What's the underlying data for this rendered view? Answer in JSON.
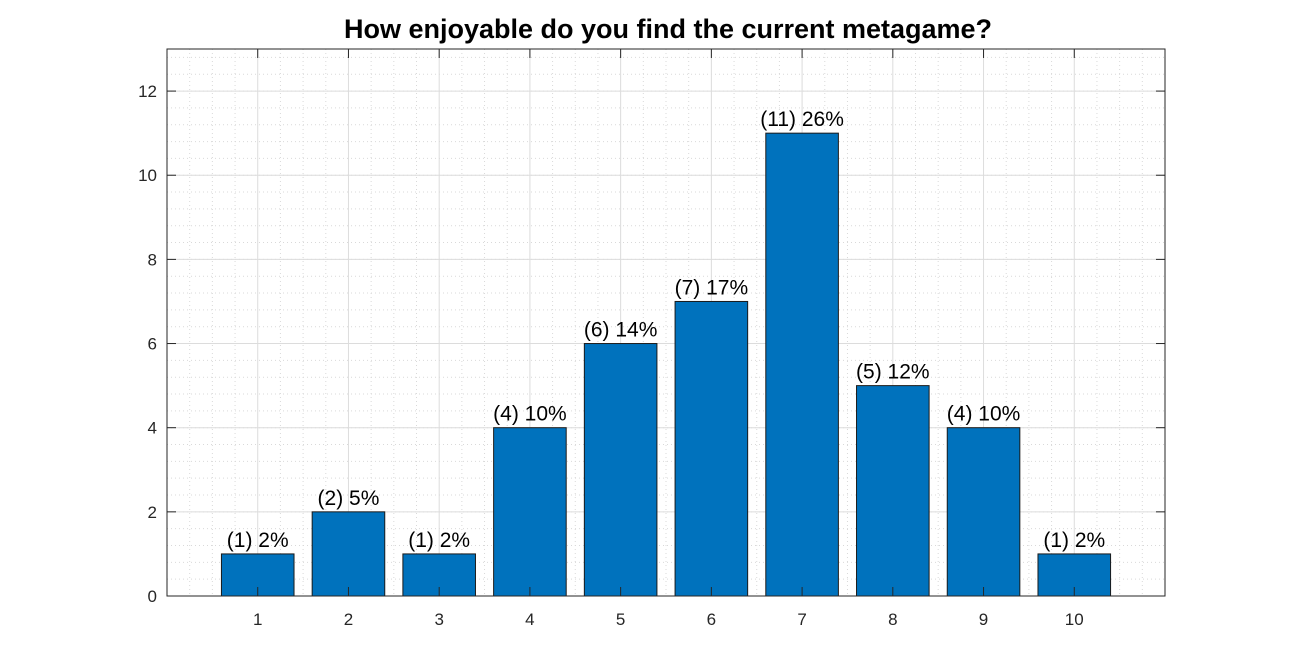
{
  "chart_data": {
    "type": "bar",
    "title": "How enjoyable do you find the current metagame?",
    "categories": [
      "1",
      "2",
      "3",
      "4",
      "5",
      "6",
      "7",
      "8",
      "9",
      "10"
    ],
    "values": [
      1,
      2,
      1,
      4,
      6,
      7,
      11,
      5,
      4,
      1
    ],
    "data_labels": [
      "(1) 2%",
      "(2) 5%",
      "(1) 2%",
      "(4) 10%",
      "(6) 14%",
      "(7) 17%",
      "(11) 26%",
      "(5) 12%",
      "(4) 10%",
      "(1) 2%"
    ],
    "xlim": [
      0,
      11
    ],
    "ylim": [
      0,
      13
    ],
    "yticks": [
      0,
      2,
      4,
      6,
      8,
      10,
      12
    ],
    "xlabel": "",
    "ylabel": "",
    "grid": true,
    "minor_grid": true,
    "bar_color": "#0072BD"
  }
}
